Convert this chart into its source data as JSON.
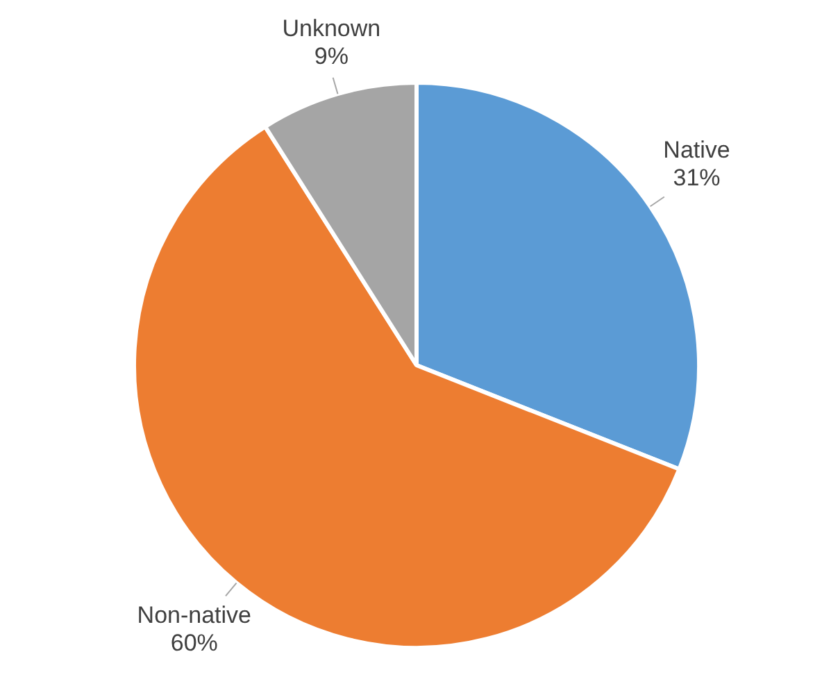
{
  "chart_data": {
    "type": "pie",
    "categories": [
      "Native",
      "Non-native",
      "Unknown"
    ],
    "values": [
      31,
      60,
      9
    ],
    "colors": [
      "#5b9bd5",
      "#ed7d31",
      "#a5a5a5"
    ],
    "value_labels": [
      "31%",
      "60%",
      "9%"
    ]
  }
}
